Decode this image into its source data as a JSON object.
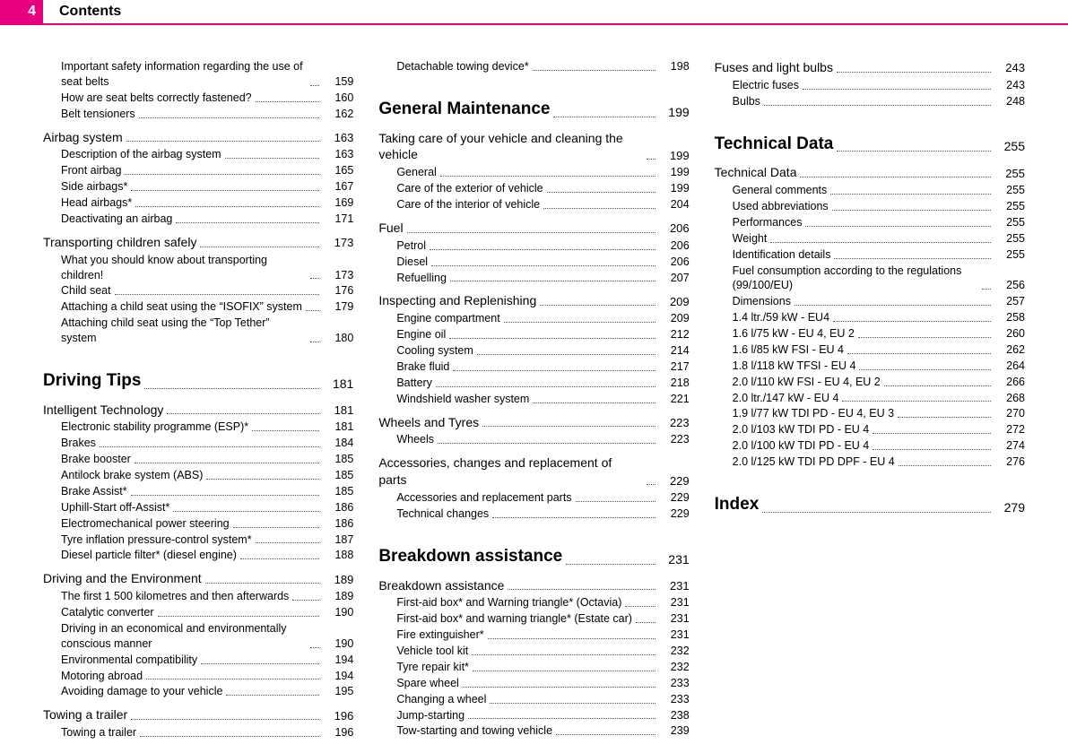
{
  "header": {
    "page_number": "4",
    "title": "Contents"
  },
  "colors": {
    "accent": "#e6007e",
    "text": "#000000",
    "bg": "#ffffff"
  },
  "toc": [
    {
      "type": "entry",
      "label": "Important safety information regarding the use of seat belts",
      "page": "159"
    },
    {
      "type": "entry",
      "label": "How are seat belts correctly fastened?",
      "page": "160"
    },
    {
      "type": "entry",
      "label": "Belt tensioners",
      "page": "162"
    },
    {
      "type": "section",
      "label": "Airbag system",
      "page": "163"
    },
    {
      "type": "entry",
      "label": "Description of the airbag system",
      "page": "163"
    },
    {
      "type": "entry",
      "label": "Front airbag",
      "page": "165"
    },
    {
      "type": "entry",
      "label": "Side airbags*",
      "page": "167"
    },
    {
      "type": "entry",
      "label": "Head airbags*",
      "page": "169"
    },
    {
      "type": "entry",
      "label": "Deactivating an airbag",
      "page": "171"
    },
    {
      "type": "section",
      "label": "Transporting children safely",
      "page": "173"
    },
    {
      "type": "entry",
      "label": "What you should know about transporting children!",
      "page": "173"
    },
    {
      "type": "entry",
      "label": "Child seat",
      "page": "176"
    },
    {
      "type": "entry",
      "label": "Attaching a child seat using the “ISOFIX” system",
      "page": "179"
    },
    {
      "type": "entry",
      "label": "Attaching child seat using the “Top Tether” system",
      "page": "180"
    },
    {
      "type": "chapter",
      "label": "Driving Tips",
      "page": "181"
    },
    {
      "type": "section",
      "label": "Intelligent Technology",
      "page": "181"
    },
    {
      "type": "entry",
      "label": "Electronic stability programme (ESP)*",
      "page": "181"
    },
    {
      "type": "entry",
      "label": "Brakes",
      "page": "184"
    },
    {
      "type": "entry",
      "label": "Brake booster",
      "page": "185"
    },
    {
      "type": "entry",
      "label": "Antilock brake system (ABS)",
      "page": "185"
    },
    {
      "type": "entry",
      "label": "Brake Assist*",
      "page": "185"
    },
    {
      "type": "entry",
      "label": "Uphill-Start off-Assist*",
      "page": "186"
    },
    {
      "type": "entry",
      "label": "Electromechanical power steering",
      "page": "186"
    },
    {
      "type": "entry",
      "label": "Tyre inflation pressure-control system*",
      "page": "187"
    },
    {
      "type": "entry",
      "label": "Diesel particle filter* (diesel engine)",
      "page": "188"
    },
    {
      "type": "section",
      "label": "Driving and the Environment",
      "page": "189"
    },
    {
      "type": "entry",
      "label": "The first 1 500 kilometres and then afterwards",
      "page": "189"
    },
    {
      "type": "entry",
      "label": "Catalytic converter",
      "page": "190"
    },
    {
      "type": "entry",
      "label": "Driving in an economical and environmentally conscious manner",
      "page": "190"
    },
    {
      "type": "entry",
      "label": "Environmental compatibility",
      "page": "194"
    },
    {
      "type": "entry",
      "label": "Motoring abroad",
      "page": "194"
    },
    {
      "type": "entry",
      "label": "Avoiding damage to your vehicle",
      "page": "195"
    },
    {
      "type": "section",
      "label": "Towing a trailer",
      "page": "196"
    },
    {
      "type": "entry",
      "label": "Towing a trailer",
      "page": "196"
    },
    {
      "type": "entry",
      "label": "Detachable towing device*",
      "page": "198"
    },
    {
      "type": "chapter",
      "label": "General Maintenance",
      "page": "199"
    },
    {
      "type": "section",
      "label": "Taking care of your vehicle and cleaning the vehicle",
      "page": "199"
    },
    {
      "type": "entry",
      "label": "General",
      "page": "199"
    },
    {
      "type": "entry",
      "label": "Care of the exterior of vehicle",
      "page": "199"
    },
    {
      "type": "entry",
      "label": "Care of the interior of vehicle",
      "page": "204"
    },
    {
      "type": "section",
      "label": "Fuel",
      "page": "206"
    },
    {
      "type": "entry",
      "label": "Petrol",
      "page": "206"
    },
    {
      "type": "entry",
      "label": "Diesel",
      "page": "206"
    },
    {
      "type": "entry",
      "label": "Refuelling",
      "page": "207"
    },
    {
      "type": "section",
      "label": "Inspecting and Replenishing",
      "page": "209"
    },
    {
      "type": "entry",
      "label": "Engine compartment",
      "page": "209"
    },
    {
      "type": "entry",
      "label": "Engine oil",
      "page": "212"
    },
    {
      "type": "entry",
      "label": "Cooling system",
      "page": "214"
    },
    {
      "type": "entry",
      "label": "Brake fluid",
      "page": "217"
    },
    {
      "type": "entry",
      "label": "Battery",
      "page": "218"
    },
    {
      "type": "entry",
      "label": "Windshield washer system",
      "page": "221"
    },
    {
      "type": "section",
      "label": "Wheels and Tyres",
      "page": "223"
    },
    {
      "type": "entry",
      "label": "Wheels",
      "page": "223"
    },
    {
      "type": "section",
      "label": "Accessories, changes and replacement of parts",
      "page": "229"
    },
    {
      "type": "entry",
      "label": "Accessories and replacement parts",
      "page": "229"
    },
    {
      "type": "entry",
      "label": "Technical changes",
      "page": "229"
    },
    {
      "type": "chapter",
      "label": "Breakdown assistance",
      "page": "231"
    },
    {
      "type": "section",
      "label": "Breakdown assistance",
      "page": "231"
    },
    {
      "type": "entry",
      "label": "First-aid box* and Warning triangle* (Octavia)",
      "page": "231"
    },
    {
      "type": "entry",
      "label": "First-aid box* and warning triangle* (Estate car)",
      "page": "231"
    },
    {
      "type": "entry",
      "label": "Fire extinguisher*",
      "page": "231"
    },
    {
      "type": "entry",
      "label": "Vehicle tool kit",
      "page": "232"
    },
    {
      "type": "entry",
      "label": "Tyre repair kit*",
      "page": "232"
    },
    {
      "type": "entry",
      "label": "Spare wheel",
      "page": "233"
    },
    {
      "type": "entry",
      "label": "Changing a wheel",
      "page": "233"
    },
    {
      "type": "entry",
      "label": "Jump-starting",
      "page": "238"
    },
    {
      "type": "entry",
      "label": "Tow-starting and towing vehicle",
      "page": "239"
    },
    {
      "type": "section",
      "label": "Fuses and light bulbs",
      "page": "243"
    },
    {
      "type": "entry",
      "label": "Electric fuses",
      "page": "243"
    },
    {
      "type": "entry",
      "label": "Bulbs",
      "page": "248"
    },
    {
      "type": "chapter",
      "label": "Technical Data",
      "page": "255"
    },
    {
      "type": "section",
      "label": "Technical Data",
      "page": "255"
    },
    {
      "type": "entry",
      "label": "General comments",
      "page": "255"
    },
    {
      "type": "entry",
      "label": "Used abbreviations",
      "page": "255"
    },
    {
      "type": "entry",
      "label": "Performances",
      "page": "255"
    },
    {
      "type": "entry",
      "label": "Weight",
      "page": "255"
    },
    {
      "type": "entry",
      "label": "Identification details",
      "page": "255"
    },
    {
      "type": "entry",
      "label": "Fuel consumption according to the regulations (99/100/EU)",
      "page": "256"
    },
    {
      "type": "entry",
      "label": "Dimensions",
      "page": "257"
    },
    {
      "type": "entry",
      "label": "1.4 ltr./59 kW - EU4",
      "page": "258"
    },
    {
      "type": "entry",
      "label": "1.6 l/75 kW - EU 4, EU 2",
      "page": "260"
    },
    {
      "type": "entry",
      "label": "1.6 l/85 kW FSI - EU 4",
      "page": "262"
    },
    {
      "type": "entry",
      "label": "1.8 l/118 kW TFSI - EU 4",
      "page": "264"
    },
    {
      "type": "entry",
      "label": "2.0 l/110 kW FSI - EU 4, EU 2",
      "page": "266"
    },
    {
      "type": "entry",
      "label": "2.0 ltr./147 kW - EU 4",
      "page": "268"
    },
    {
      "type": "entry",
      "label": "1.9 l/77 kW TDI PD - EU 4, EU 3",
      "page": "270"
    },
    {
      "type": "entry",
      "label": "2.0 l/103 kW TDI PD - EU 4",
      "page": "272"
    },
    {
      "type": "entry",
      "label": "2.0 l/100 kW TDI PD - EU 4",
      "page": "274"
    },
    {
      "type": "entry",
      "label": "2.0 l/125 kW TDI PD DPF - EU 4",
      "page": "276"
    },
    {
      "type": "chapter",
      "label": "Index",
      "page": "279"
    }
  ]
}
